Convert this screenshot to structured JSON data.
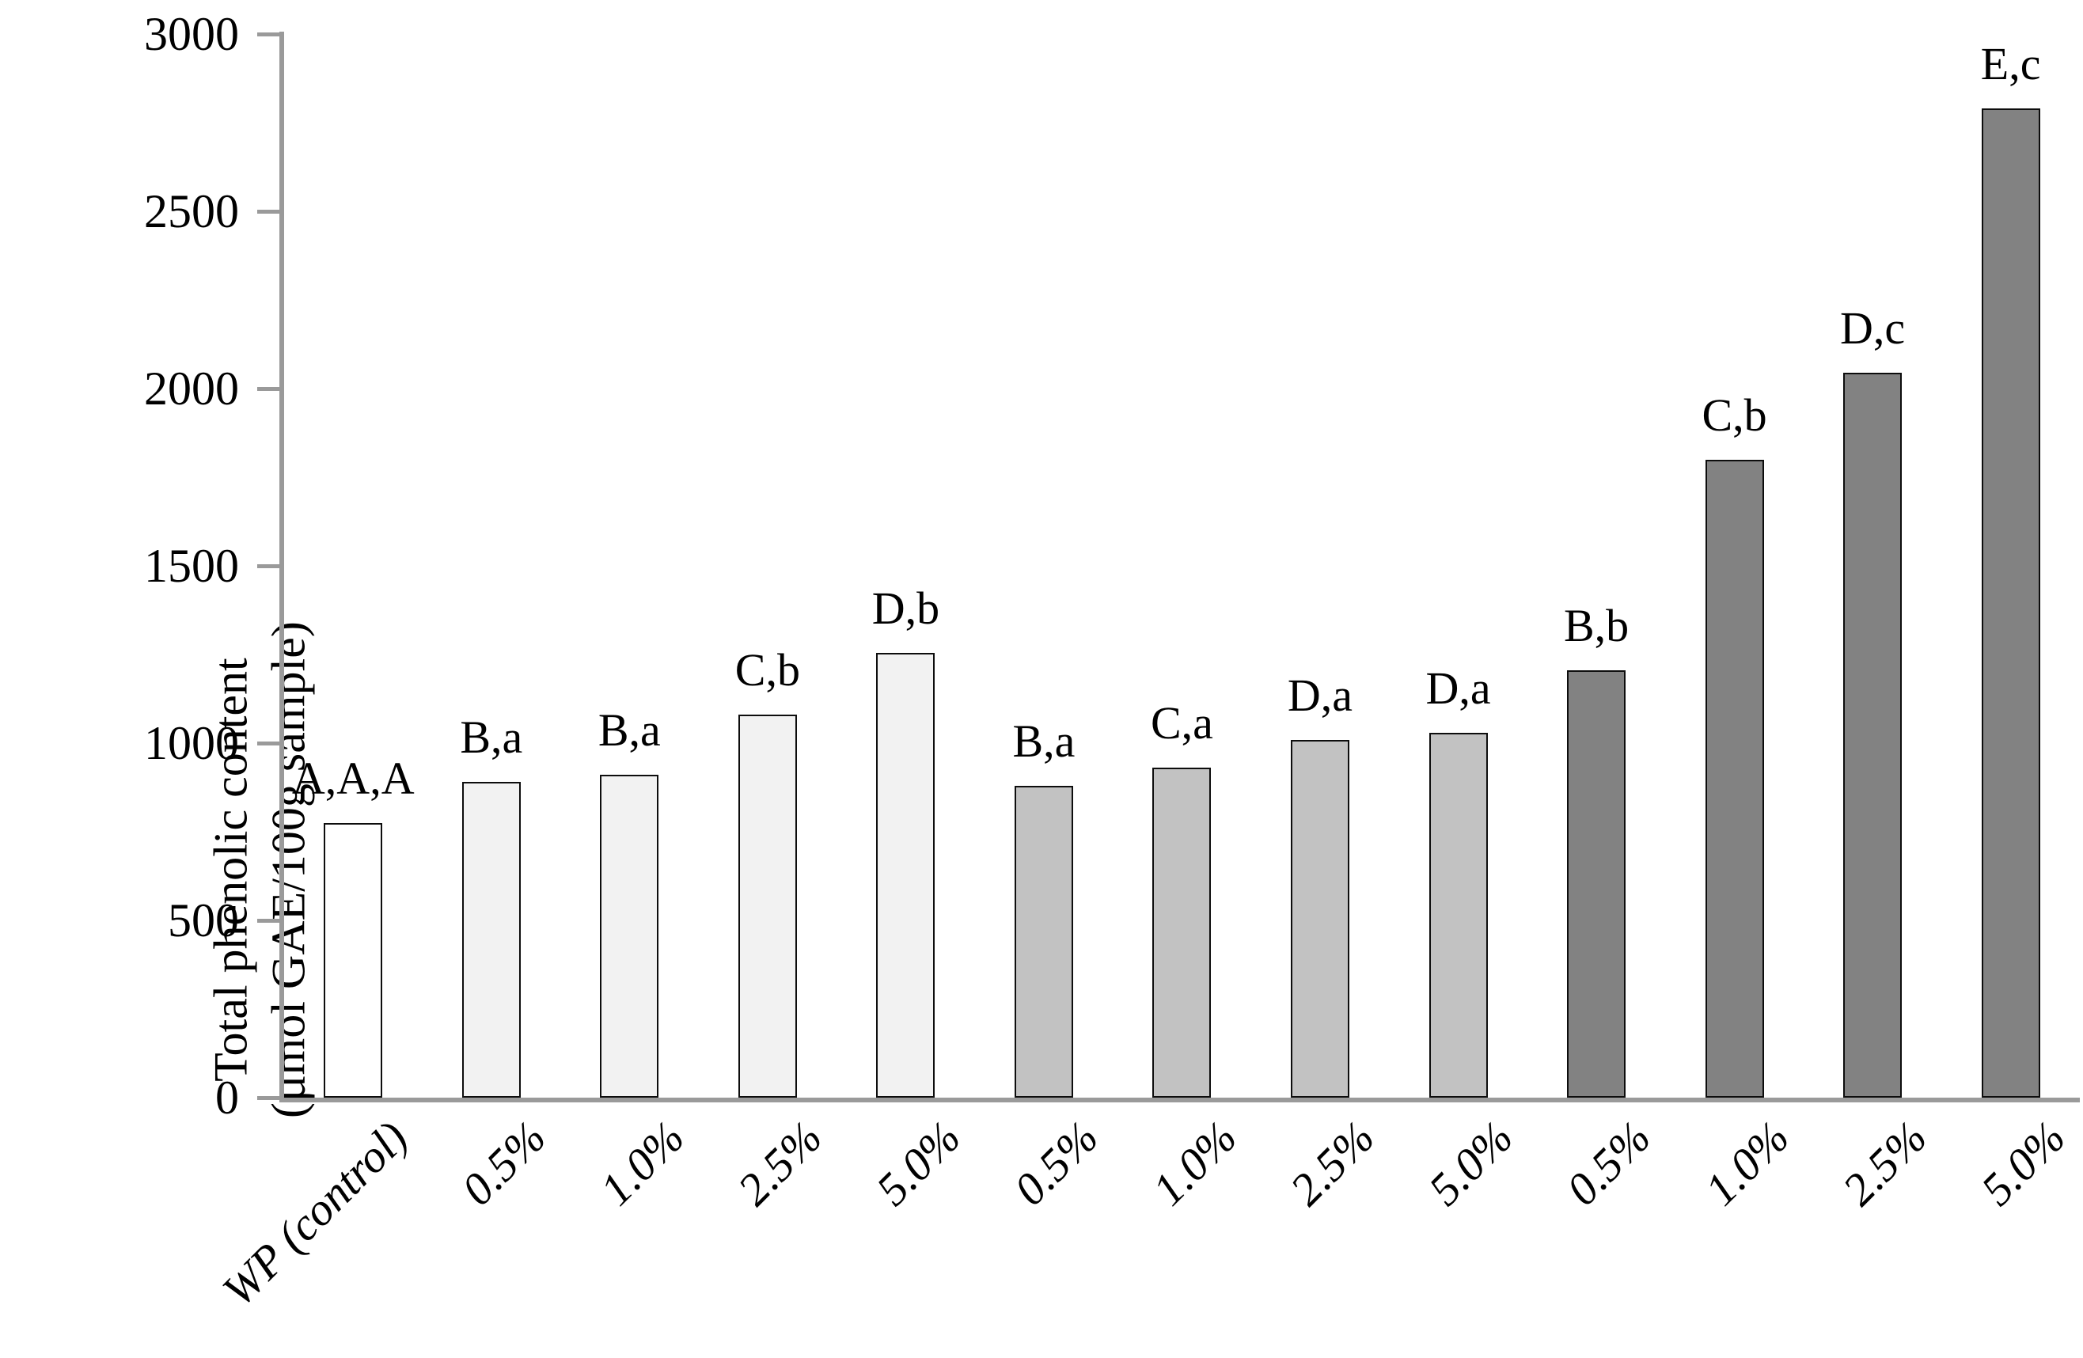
{
  "chart_data": {
    "type": "bar",
    "title": "",
    "ylabel_line1": "Total phenolic content",
    "ylabel_line2": "(µmol GAE/100g sample)",
    "ylabel": "Total phenolic content (µmol GAE/100g sample)",
    "xlabel": "",
    "ylim": [
      0,
      3000
    ],
    "ytick_step": 500,
    "yticks": [
      3000,
      2500,
      2000,
      1500,
      1000,
      500,
      0
    ],
    "grid": false,
    "legend": "none",
    "axis_color": "#9a9a9a",
    "bar_border_color": "#0d0d0d",
    "categories": [
      "WP (control)",
      "0.5%",
      "1.0%",
      "2.5%",
      "5.0%",
      "0.5%",
      "1.0%",
      "2.5%",
      "5.0%",
      "0.5%",
      "1.0%",
      "2.5%",
      "5.0%"
    ],
    "values": [
      775,
      890,
      910,
      1080,
      1255,
      880,
      930,
      1010,
      1030,
      1205,
      1800,
      2045,
      2790
    ],
    "bar_labels": [
      "A,A,A",
      "B,a",
      "B,a",
      "C,b",
      "D,b",
      "B,a",
      "C,a",
      "D,a",
      "D,a",
      "B,b",
      "C,b",
      "D,c",
      "E,c"
    ],
    "bar_fills": [
      "#ffffff",
      "#f2f2f2",
      "#f2f2f2",
      "#f2f2f2",
      "#f2f2f2",
      "#c2c2c2",
      "#c2c2c2",
      "#c2c2c2",
      "#c2c2c2",
      "#828282",
      "#828282",
      "#828282",
      "#828282"
    ]
  }
}
